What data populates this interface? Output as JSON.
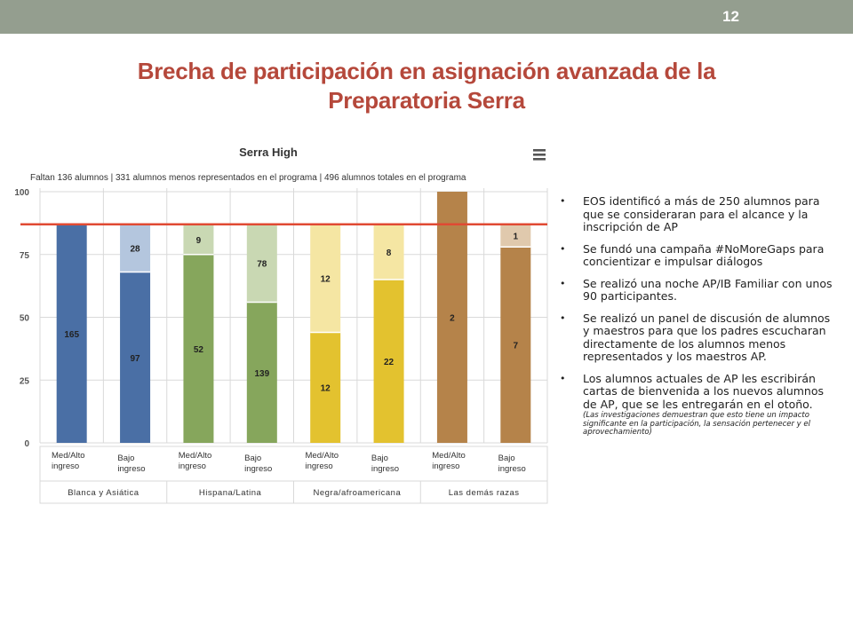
{
  "slide": {
    "number": "12",
    "title_line1": "Brecha de participación en asignación avanzada de la",
    "title_line2": "Preparatoria Serra"
  },
  "chart_data": {
    "type": "bar",
    "title": "Serra High",
    "subtitle": "Faltan 136 alumnos | 331 alumnos menos representados en el programa | 496 alumnos totales en el programa",
    "ylim": [
      0,
      100
    ],
    "yticks": [
      0,
      25,
      50,
      75,
      100
    ],
    "target_line": 87,
    "categories": [
      "Med/Alto ingreso",
      "Bajo ingreso",
      "Med/Alto ingreso",
      "Bajo ingreso",
      "Med/Alto ingreso",
      "Bajo ingreso",
      "Med/Alto ingreso",
      "Bajo ingreso"
    ],
    "groups": [
      "Blanca y Asiática",
      "Hispana/Latina",
      "Negra/afroamericana",
      "Las demás razas"
    ],
    "series": [
      {
        "values": [
          87,
          68,
          75,
          56,
          44,
          65,
          100,
          78
        ],
        "labels": [
          "165",
          "97",
          "52",
          "139",
          "12",
          "22",
          "2",
          "7"
        ]
      },
      {
        "values": [
          0,
          19,
          12,
          31,
          43,
          22,
          0,
          9
        ],
        "labels": [
          "",
          "28",
          "9",
          "78",
          "12",
          "8",
          "",
          "1"
        ]
      }
    ],
    "colors": {
      "solid": [
        "#4a6fa5",
        "#4a6fa5",
        "#86a65c",
        "#86a65c",
        "#e3c22f",
        "#e3c22f",
        "#b5834a",
        "#b5834a"
      ],
      "light": [
        "#b4c6de",
        "#b4c6de",
        "#c9d8b3",
        "#c9d8b3",
        "#f5e6a3",
        "#f5e6a3",
        "#e0c9ad",
        "#e0c9ad"
      ],
      "target": "#e04a33",
      "grid": "#d9d9d9",
      "menu_icon": "#555555"
    },
    "menu_icon": "hamburger-menu-icon"
  },
  "bullets": [
    {
      "text": "EOS identificó a más de 250 alumnos para que se consideraran para el alcance y la inscripción de AP"
    },
    {
      "text": "Se fundó una campaña #NoMoreGaps para concientizar e impulsar diálogos"
    },
    {
      "text": "Se realizó una noche AP/IB Familiar con unos 90 participantes."
    },
    {
      "text": "Se realizó un panel de discusión de alumnos y maestros para que los padres escucharan directamente de los alumnos menos representados y los maestros AP."
    },
    {
      "text": "Los alumnos actuales de AP les escribirán cartas de bienvenida a los nuevos alumnos de AP, que se les entregarán en el otoño.",
      "note": "(Las investigaciones demuestran que esto tiene un impacto significante en la participación, la sensación pertenecer y el aprovechamiento)"
    }
  ]
}
